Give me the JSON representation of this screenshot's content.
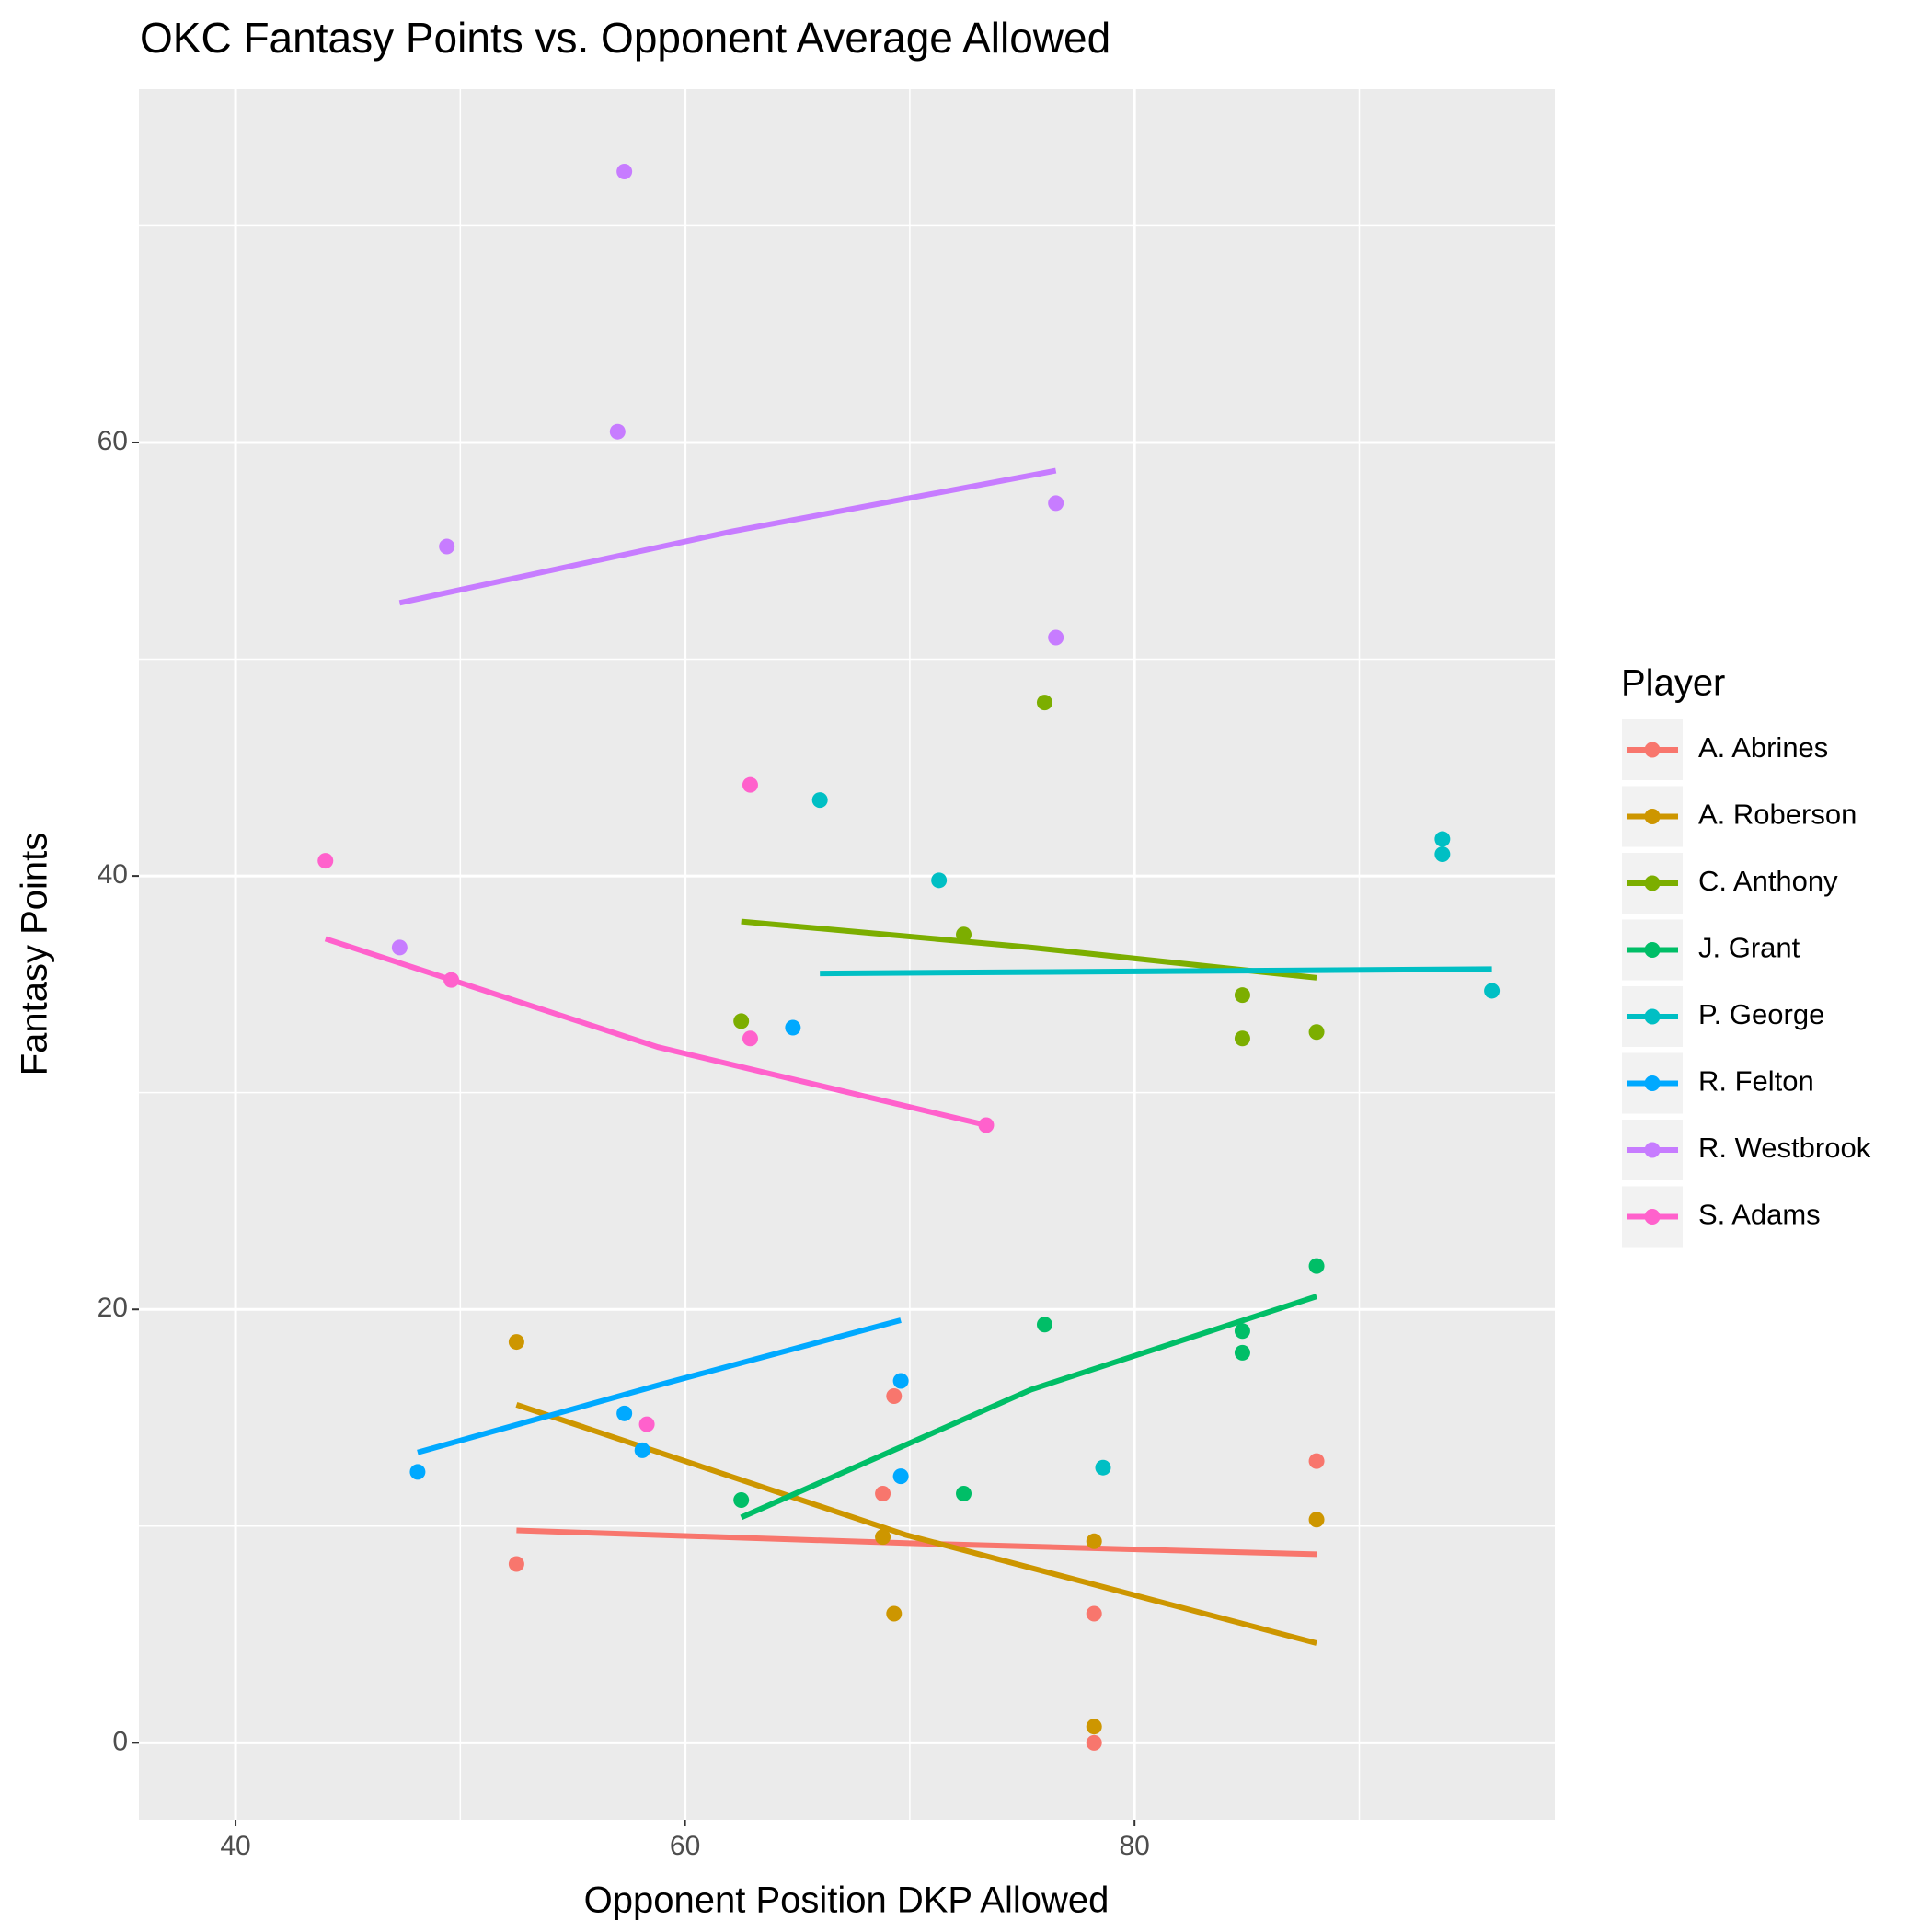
{
  "chart_data": {
    "type": "scatter",
    "title": "OKC Fantasy Points vs. Opponent Average Allowed",
    "x_label": "Opponent Position DKP Allowed",
    "y_label": "Fantasy Points",
    "legend_title": "Player",
    "legend": "right",
    "grid": true,
    "xlim": [
      35.7,
      98.7
    ],
    "ylim": [
      -3.55,
      76.3
    ],
    "xticks": [
      40,
      60,
      80
    ],
    "yticks": [
      0,
      20,
      40,
      60
    ],
    "xminorticks": [
      50,
      70,
      90
    ],
    "yminorticks": [
      10,
      30,
      50,
      70
    ],
    "series": [
      {
        "name": "A. Abrines",
        "color": "#F8766D",
        "x": [
          52.5,
          69.3,
          68.8,
          78.2,
          78.2,
          88.1
        ],
        "values": [
          8.25,
          16.0,
          11.5,
          5.96,
          0,
          13.0
        ],
        "trend": {
          "x": [
            52.5,
            70.3,
            88.1
          ],
          "y": [
            9.8,
            9.2,
            8.7
          ]
        }
      },
      {
        "name": "A. Roberson",
        "color": "#CD9600",
        "x": [
          52.5,
          68.8,
          69.3,
          78.2,
          78.2,
          88.1
        ],
        "values": [
          18.5,
          9.5,
          5.96,
          9.3,
          0.75,
          10.3
        ],
        "trend": {
          "x": [
            52.5,
            69.8,
            88.1
          ],
          "y": [
            15.6,
            9.6,
            4.6
          ]
        }
      },
      {
        "name": "C. Anthony",
        "color": "#7CAE00",
        "x": [
          62.5,
          72.4,
          76.0,
          84.8,
          84.8,
          88.1
        ],
        "values": [
          33.3,
          37.3,
          48.0,
          34.5,
          32.5,
          32.8
        ],
        "trend": {
          "x": [
            62.5,
            75.4,
            88.1
          ],
          "y": [
            37.9,
            36.7,
            35.3
          ]
        }
      },
      {
        "name": "J. Grant",
        "color": "#00BE67",
        "x": [
          62.5,
          72.4,
          76.0,
          84.8,
          84.8,
          88.1
        ],
        "values": [
          11.2,
          11.5,
          19.3,
          19.0,
          18.0,
          22.0
        ],
        "trend": {
          "x": [
            62.5,
            75.4,
            88.1
          ],
          "y": [
            10.4,
            16.3,
            20.6
          ]
        }
      },
      {
        "name": "P. George",
        "color": "#00BFC4",
        "x": [
          66.0,
          71.3,
          78.6,
          93.7,
          93.7,
          95.9
        ],
        "values": [
          43.5,
          39.8,
          12.7,
          41.7,
          41.0,
          34.7
        ],
        "trend": {
          "x": [
            66.0,
            80.9,
            95.9
          ],
          "y": [
            35.5,
            35.6,
            35.7
          ]
        }
      },
      {
        "name": "R. Felton",
        "color": "#00A9FF",
        "x": [
          48.1,
          57.3,
          58.1,
          64.8,
          69.6,
          69.6
        ],
        "values": [
          12.5,
          15.2,
          13.5,
          33.0,
          16.7,
          12.3
        ],
        "trend": {
          "x": [
            48.1,
            58.8,
            69.6
          ],
          "y": [
            13.4,
            16.5,
            19.5
          ]
        }
      },
      {
        "name": "R. Westbrook",
        "color": "#C77CFF",
        "x": [
          47.3,
          49.4,
          57.0,
          57.3,
          76.5,
          76.5
        ],
        "values": [
          36.7,
          55.2,
          60.5,
          72.5,
          57.2,
          51.0
        ],
        "trend": {
          "x": [
            47.3,
            62.1,
            76.5
          ],
          "y": [
            52.6,
            55.9,
            58.7
          ]
        }
      },
      {
        "name": "S. Adams",
        "color": "#FF61CC",
        "x": [
          44.0,
          49.6,
          58.3,
          62.9,
          62.9,
          73.4
        ],
        "values": [
          40.7,
          35.2,
          14.7,
          44.2,
          32.5,
          28.5
        ],
        "trend": {
          "x": [
            44.0,
            58.8,
            73.4
          ],
          "y": [
            37.1,
            32.1,
            28.5
          ]
        }
      }
    ]
  }
}
